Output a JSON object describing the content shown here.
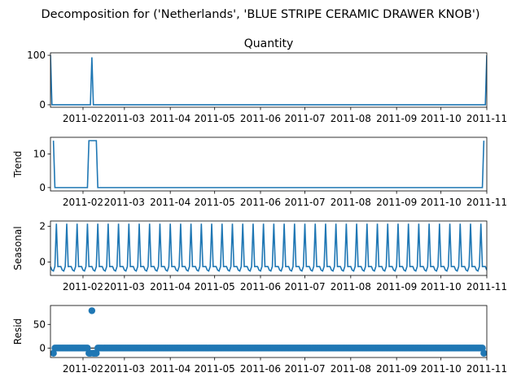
{
  "chart_data": {
    "title": "Decomposition for ('Netherlands', 'BLUE STRIPE CERAMIC DRAWER KNOB')",
    "line_color": "#1f77b4",
    "x_range": [
      "2011-01-10",
      "2011-11-01"
    ],
    "x_ticks": [
      {
        "date": "2011-02-01",
        "label": "2011-02"
      },
      {
        "date": "2011-03-01",
        "label": "2011-03"
      },
      {
        "date": "2011-04-01",
        "label": "2011-04"
      },
      {
        "date": "2011-05-01",
        "label": "2011-05"
      },
      {
        "date": "2011-06-01",
        "label": "2011-06"
      },
      {
        "date": "2011-07-01",
        "label": "2011-07"
      },
      {
        "date": "2011-08-01",
        "label": "2011-08"
      },
      {
        "date": "2011-09-01",
        "label": "2011-09"
      },
      {
        "date": "2011-10-01",
        "label": "2011-10"
      },
      {
        "date": "2011-11-01",
        "label": "2011-11"
      }
    ],
    "panels": [
      {
        "key": "observed",
        "type": "line",
        "subtitle": "Quantity",
        "ylabel": "",
        "ylim": [
          -5,
          105
        ],
        "yticks": [
          0,
          100
        ],
        "points": [
          [
            "2011-01-10",
            100
          ],
          [
            "2011-01-11",
            0
          ],
          [
            "2011-02-06",
            0
          ],
          [
            "2011-02-07",
            96
          ],
          [
            "2011-02-08",
            0
          ],
          [
            "2011-10-31",
            0
          ],
          [
            "2011-11-01",
            100
          ]
        ]
      },
      {
        "key": "trend",
        "type": "line",
        "subtitle": "",
        "ylabel": "Trend",
        "ylim": [
          -1,
          15
        ],
        "yticks": [
          0,
          10
        ],
        "points": [
          [
            "2011-01-12",
            14
          ],
          [
            "2011-01-13",
            0
          ],
          [
            "2011-02-04",
            0
          ],
          [
            "2011-02-05",
            14
          ],
          [
            "2011-02-10",
            14
          ],
          [
            "2011-02-11",
            0
          ],
          [
            "2011-10-29",
            0
          ],
          [
            "2011-10-30",
            14
          ]
        ]
      },
      {
        "key": "seasonal",
        "type": "line",
        "subtitle": "",
        "ylabel": "Seasonal",
        "ylim": [
          -0.75,
          2.3
        ],
        "yticks": [
          0,
          2
        ],
        "pattern": [
          -0.25,
          -0.25,
          -0.25,
          -0.45,
          -0.5,
          -0.25,
          2.15
        ],
        "start": "2011-01-10",
        "end": "2011-11-01",
        "start_offset": 2
      },
      {
        "key": "resid",
        "type": "scatter",
        "subtitle": "",
        "ylabel": "Resid",
        "ylim": [
          -20,
          90
        ],
        "yticks": [
          0,
          50
        ],
        "baseline": 0,
        "baseline_start": "2011-01-12",
        "baseline_end": "2011-10-30",
        "outliers": [
          [
            "2011-01-12",
            -11
          ],
          [
            "2011-02-05",
            -11
          ],
          [
            "2011-02-06",
            -11
          ],
          [
            "2011-02-07",
            79
          ],
          [
            "2011-02-08",
            -11
          ],
          [
            "2011-02-09",
            -11
          ],
          [
            "2011-02-10",
            -11
          ],
          [
            "2011-10-30",
            -11
          ]
        ]
      }
    ]
  }
}
